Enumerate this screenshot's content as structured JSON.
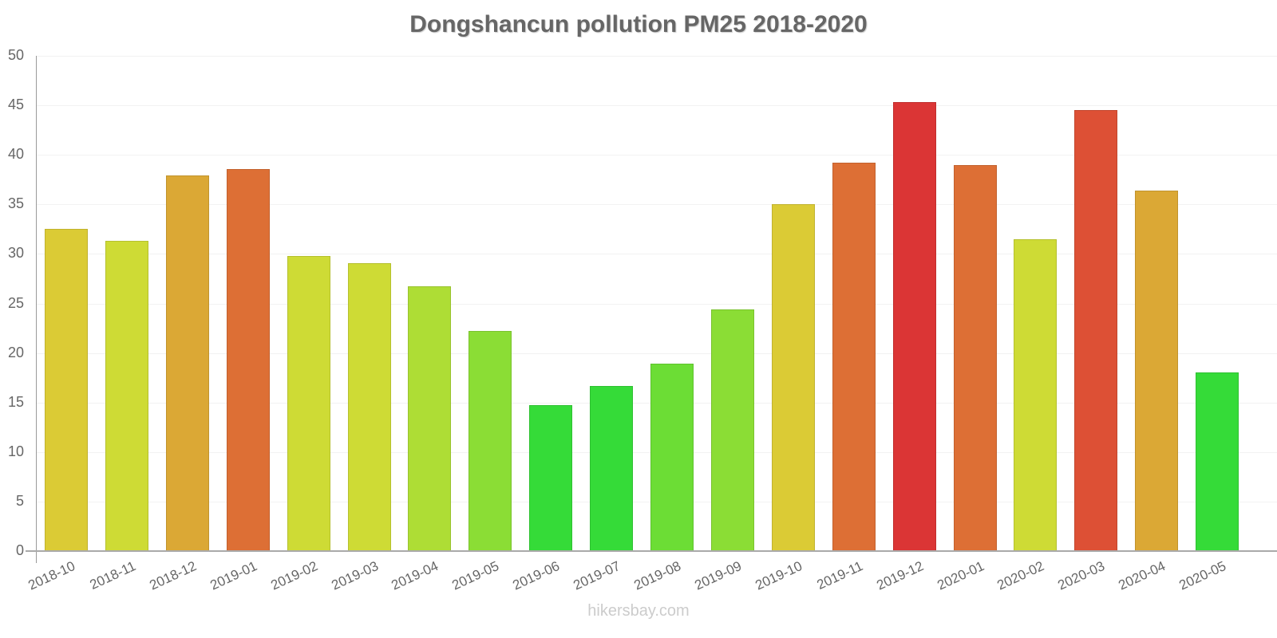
{
  "chart_data": {
    "type": "bar",
    "title": "Dongshancun pollution PM25 2018-2020",
    "xlabel": "",
    "ylabel": "",
    "ylim": [
      0,
      50
    ],
    "yticks": [
      0,
      5,
      10,
      15,
      20,
      25,
      30,
      35,
      40,
      45,
      50
    ],
    "grid": true,
    "legend": null,
    "categories": [
      "2018-10",
      "2018-11",
      "2018-12",
      "2019-01",
      "2019-02",
      "2019-03",
      "2019-04",
      "2019-05",
      "2019-06",
      "2019-07",
      "2019-08",
      "2019-09",
      "2019-10",
      "2019-11",
      "2019-12",
      "2020-01",
      "2020-02",
      "2020-03",
      "2020-04",
      "2020-05"
    ],
    "values": [
      32.5,
      31.3,
      37.9,
      38.6,
      29.8,
      29.1,
      26.7,
      22.2,
      14.7,
      16.7,
      18.9,
      24.4,
      35.0,
      39.2,
      45.3,
      39.0,
      31.5,
      44.5,
      36.4,
      18.0
    ],
    "colors": [
      "#dbcb35",
      "#cedb35",
      "#dba835",
      "#dd6f35",
      "#cedb35",
      "#cedb35",
      "#aedd35",
      "#8bdd35",
      "#35db38",
      "#35db38",
      "#6cdd35",
      "#8bdd35",
      "#dbcb35",
      "#dd6f35",
      "#db3535",
      "#dd6f35",
      "#cedb35",
      "#dd5035",
      "#dba835",
      "#35db38"
    ]
  },
  "watermark": "hikersbay.com"
}
